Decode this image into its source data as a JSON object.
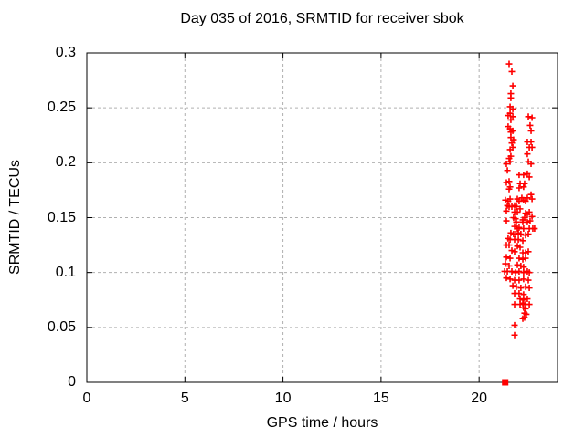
{
  "chart_data": {
    "type": "scatter",
    "title": "Day 035 of 2016, SRMTID for receiver sbok",
    "xlabel": "GPS time / hours",
    "ylabel": "SRMTID / TECUs",
    "xlim": [
      0,
      24
    ],
    "ylim": [
      0,
      0.3
    ],
    "xtick_values": [
      0,
      5,
      10,
      15,
      20
    ],
    "xtick_labels": [
      "0",
      "5",
      "10",
      "15",
      "20"
    ],
    "ytick_values": [
      0,
      0.05,
      0.1,
      0.15,
      0.2,
      0.25,
      0.3
    ],
    "ytick_labels": [
      "0",
      "0.05",
      "0.1",
      "0.15",
      "0.2",
      "0.25",
      "0.3"
    ],
    "grid": true,
    "legend": "none",
    "colors": {
      "marker": "#ff0000",
      "grid": "#b0b0b0",
      "axis": "#000000"
    },
    "series": [
      {
        "name": "plus-markers",
        "marker": "plus",
        "color": "#ff0000",
        "points": [
          [
            21.53,
            0.29
          ],
          [
            21.67,
            0.283
          ],
          [
            21.72,
            0.27
          ],
          [
            21.62,
            0.263
          ],
          [
            21.62,
            0.259
          ],
          [
            21.58,
            0.251
          ],
          [
            21.72,
            0.249
          ],
          [
            21.58,
            0.245
          ],
          [
            21.48,
            0.243
          ],
          [
            21.72,
            0.242
          ],
          [
            21.62,
            0.239
          ],
          [
            22.51,
            0.242
          ],
          [
            22.7,
            0.241
          ],
          [
            21.48,
            0.233
          ],
          [
            21.58,
            0.231
          ],
          [
            21.72,
            0.229
          ],
          [
            21.62,
            0.228
          ],
          [
            22.6,
            0.234
          ],
          [
            22.65,
            0.229
          ],
          [
            21.62,
            0.223
          ],
          [
            21.76,
            0.221
          ],
          [
            21.67,
            0.218
          ],
          [
            21.72,
            0.214
          ],
          [
            21.58,
            0.212
          ],
          [
            22.46,
            0.219
          ],
          [
            22.65,
            0.219
          ],
          [
            22.56,
            0.214
          ],
          [
            22.7,
            0.214
          ],
          [
            22.46,
            0.208
          ],
          [
            21.62,
            0.206
          ],
          [
            21.53,
            0.204
          ],
          [
            21.58,
            0.201
          ],
          [
            21.39,
            0.199
          ],
          [
            22.51,
            0.201
          ],
          [
            22.65,
            0.199
          ],
          [
            21.44,
            0.193
          ],
          [
            22.04,
            0.189
          ],
          [
            22.27,
            0.189
          ],
          [
            22.46,
            0.19
          ],
          [
            22.56,
            0.187
          ],
          [
            21.53,
            0.183
          ],
          [
            21.39,
            0.182
          ],
          [
            22.09,
            0.181
          ],
          [
            22.32,
            0.181
          ],
          [
            21.58,
            0.178
          ],
          [
            21.53,
            0.176
          ],
          [
            22.04,
            0.177
          ],
          [
            22.27,
            0.178
          ],
          [
            22.65,
            0.171
          ],
          [
            22.7,
            0.167
          ],
          [
            21.34,
            0.166
          ],
          [
            21.48,
            0.165
          ],
          [
            21.58,
            0.167
          ],
          [
            21.95,
            0.167
          ],
          [
            22.04,
            0.165
          ],
          [
            22.18,
            0.168
          ],
          [
            22.27,
            0.166
          ],
          [
            22.37,
            0.165
          ],
          [
            22.46,
            0.168
          ],
          [
            21.44,
            0.161
          ],
          [
            21.53,
            0.16
          ],
          [
            21.67,
            0.16
          ],
          [
            21.81,
            0.161
          ],
          [
            21.9,
            0.16
          ],
          [
            22.09,
            0.158
          ],
          [
            21.39,
            0.156
          ],
          [
            21.81,
            0.155
          ],
          [
            21.95,
            0.155
          ],
          [
            22.37,
            0.154
          ],
          [
            22.46,
            0.153
          ],
          [
            22.56,
            0.155
          ],
          [
            21.76,
            0.15
          ],
          [
            21.86,
            0.149
          ],
          [
            22.23,
            0.148
          ],
          [
            22.32,
            0.15
          ],
          [
            22.7,
            0.151
          ],
          [
            21.39,
            0.147
          ],
          [
            21.9,
            0.146
          ],
          [
            22.23,
            0.146
          ],
          [
            22.46,
            0.146
          ],
          [
            22.6,
            0.147
          ],
          [
            21.81,
            0.142
          ],
          [
            21.95,
            0.14
          ],
          [
            22.04,
            0.141
          ],
          [
            22.27,
            0.14
          ],
          [
            22.56,
            0.14
          ],
          [
            22.74,
            0.14
          ],
          [
            22.83,
            0.14
          ],
          [
            21.62,
            0.136
          ],
          [
            21.76,
            0.135
          ],
          [
            21.86,
            0.135
          ],
          [
            22.0,
            0.136
          ],
          [
            22.13,
            0.135
          ],
          [
            22.37,
            0.134
          ],
          [
            22.51,
            0.135
          ],
          [
            21.48,
            0.131
          ],
          [
            21.58,
            0.13
          ],
          [
            21.81,
            0.13
          ],
          [
            22.0,
            0.13
          ],
          [
            22.23,
            0.129
          ],
          [
            21.39,
            0.125
          ],
          [
            21.53,
            0.125
          ],
          [
            21.95,
            0.124
          ],
          [
            22.09,
            0.123
          ],
          [
            21.67,
            0.12
          ],
          [
            21.81,
            0.119
          ],
          [
            22.23,
            0.118
          ],
          [
            22.37,
            0.118
          ],
          [
            22.51,
            0.119
          ],
          [
            21.39,
            0.114
          ],
          [
            21.58,
            0.113
          ],
          [
            22.04,
            0.113
          ],
          [
            22.23,
            0.112
          ],
          [
            22.37,
            0.113
          ],
          [
            21.34,
            0.108
          ],
          [
            21.53,
            0.106
          ],
          [
            21.95,
            0.107
          ],
          [
            22.13,
            0.106
          ],
          [
            22.27,
            0.105
          ],
          [
            21.3,
            0.101
          ],
          [
            21.44,
            0.101
          ],
          [
            21.67,
            0.101
          ],
          [
            21.86,
            0.1
          ],
          [
            22.04,
            0.101
          ],
          [
            22.27,
            0.1
          ],
          [
            22.46,
            0.101
          ],
          [
            22.56,
            0.1
          ],
          [
            21.39,
            0.095
          ],
          [
            21.58,
            0.094
          ],
          [
            21.81,
            0.093
          ],
          [
            22.04,
            0.093
          ],
          [
            22.27,
            0.094
          ],
          [
            22.51,
            0.093
          ],
          [
            21.72,
            0.088
          ],
          [
            21.9,
            0.087
          ],
          [
            22.13,
            0.086
          ],
          [
            22.37,
            0.087
          ],
          [
            22.56,
            0.086
          ],
          [
            21.81,
            0.081
          ],
          [
            22.04,
            0.081
          ],
          [
            22.27,
            0.08
          ],
          [
            22.09,
            0.076
          ],
          [
            22.27,
            0.075
          ],
          [
            22.46,
            0.076
          ],
          [
            21.81,
            0.071
          ],
          [
            22.09,
            0.071
          ],
          [
            22.23,
            0.072
          ],
          [
            22.37,
            0.071
          ],
          [
            22.56,
            0.071
          ],
          [
            22.27,
            0.068
          ],
          [
            22.37,
            0.067
          ],
          [
            22.32,
            0.063
          ],
          [
            22.41,
            0.062
          ],
          [
            22.23,
            0.058
          ],
          [
            22.32,
            0.059
          ],
          [
            21.81,
            0.052
          ],
          [
            21.81,
            0.043
          ]
        ]
      },
      {
        "name": "square-marker",
        "marker": "filled-square",
        "color": "#ff0000",
        "points": [
          [
            21.33,
            0
          ]
        ]
      }
    ]
  }
}
